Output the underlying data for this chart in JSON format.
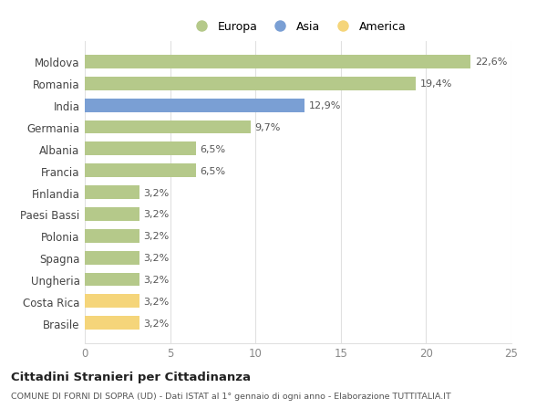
{
  "categories": [
    "Brasile",
    "Costa Rica",
    "Ungheria",
    "Spagna",
    "Polonia",
    "Paesi Bassi",
    "Finlandia",
    "Francia",
    "Albania",
    "Germania",
    "India",
    "Romania",
    "Moldova"
  ],
  "values": [
    3.2,
    3.2,
    3.2,
    3.2,
    3.2,
    3.2,
    3.2,
    6.5,
    6.5,
    9.7,
    12.9,
    19.4,
    22.6
  ],
  "labels": [
    "3,2%",
    "3,2%",
    "3,2%",
    "3,2%",
    "3,2%",
    "3,2%",
    "3,2%",
    "6,5%",
    "6,5%",
    "9,7%",
    "12,9%",
    "19,4%",
    "22,6%"
  ],
  "colors": [
    "#f5d57a",
    "#f5d57a",
    "#b5c98a",
    "#b5c98a",
    "#b5c98a",
    "#b5c98a",
    "#b5c98a",
    "#b5c98a",
    "#b5c98a",
    "#b5c98a",
    "#7a9fd4",
    "#b5c98a",
    "#b5c98a"
  ],
  "legend": [
    {
      "label": "Europa",
      "color": "#b5c98a"
    },
    {
      "label": "Asia",
      "color": "#7a9fd4"
    },
    {
      "label": "America",
      "color": "#f5d57a"
    }
  ],
  "xlim": [
    0,
    25
  ],
  "xticks": [
    0,
    5,
    10,
    15,
    20,
    25
  ],
  "title1": "Cittadini Stranieri per Cittadinanza",
  "title2": "COMUNE DI FORNI DI SOPRA (UD) - Dati ISTAT al 1° gennaio di ogni anno - Elaborazione TUTTITALIA.IT",
  "bg_color": "#ffffff",
  "grid_color": "#e0e0e0",
  "label_color": "#555555",
  "tick_color": "#888888"
}
